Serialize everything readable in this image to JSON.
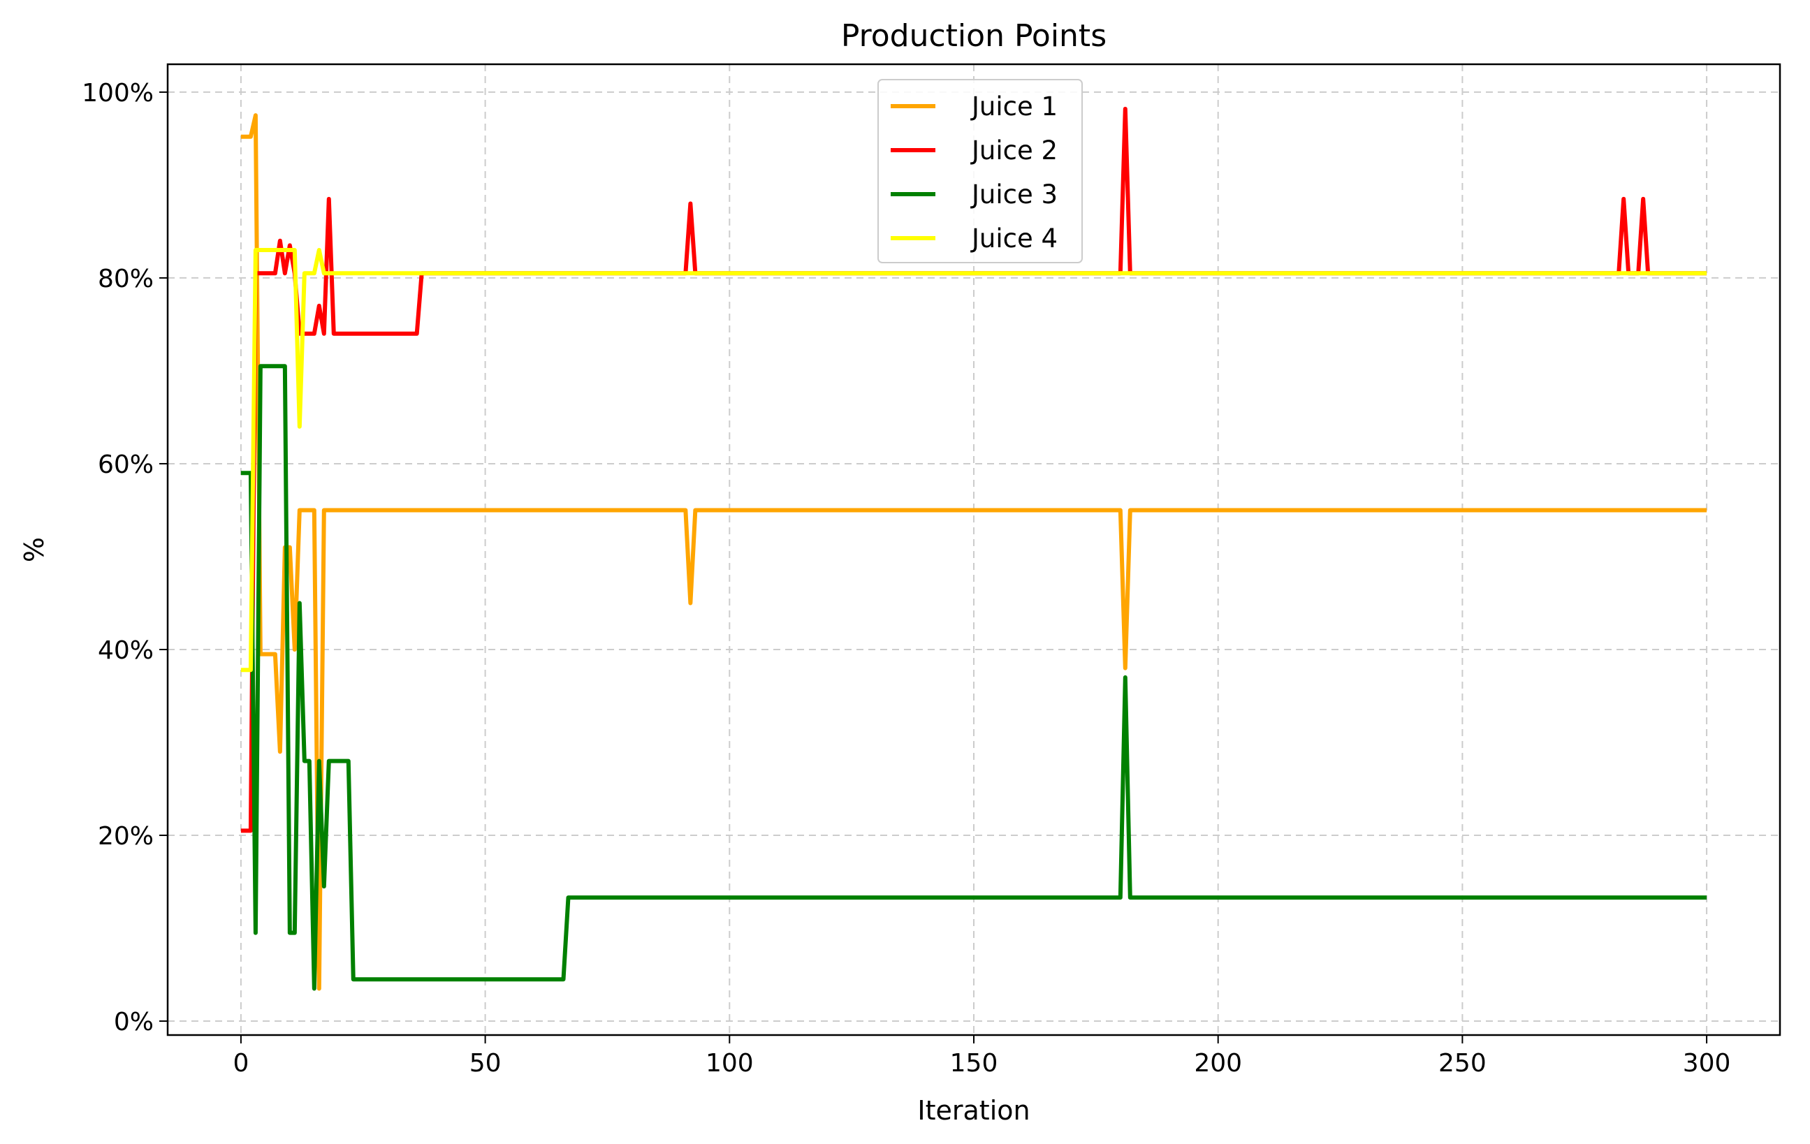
{
  "chart_data": {
    "type": "line",
    "title": "Production Points",
    "xlabel": "Iteration",
    "ylabel": "%",
    "xlim": [
      -15,
      315
    ],
    "ylim": [
      -1.5,
      103
    ],
    "xticks": [
      0,
      50,
      100,
      150,
      200,
      250,
      300
    ],
    "yticks": [
      0,
      20,
      40,
      60,
      80,
      100
    ],
    "ytick_labels": [
      "0%",
      "20%",
      "40%",
      "60%",
      "80%",
      "100%"
    ],
    "grid": true,
    "legend_position": "upper center",
    "series": [
      {
        "name": "Juice 1",
        "color": "#FFA500",
        "points": [
          [
            0,
            95.2
          ],
          [
            2,
            95.2
          ],
          [
            3,
            97.5
          ],
          [
            4,
            39.5
          ],
          [
            7,
            39.5
          ],
          [
            8,
            29
          ],
          [
            9,
            51
          ],
          [
            10,
            51
          ],
          [
            11,
            40
          ],
          [
            12,
            55
          ],
          [
            15,
            55
          ],
          [
            16,
            3.5
          ],
          [
            17,
            55
          ],
          [
            91,
            55
          ],
          [
            92,
            45
          ],
          [
            93,
            55
          ],
          [
            180,
            55
          ],
          [
            181,
            38
          ],
          [
            182,
            55
          ],
          [
            300,
            55
          ]
        ]
      },
      {
        "name": "Juice 2",
        "color": "#FF0000",
        "points": [
          [
            0,
            20.5
          ],
          [
            2,
            20.5
          ],
          [
            3,
            80.5
          ],
          [
            7,
            80.5
          ],
          [
            8,
            84
          ],
          [
            9,
            80.5
          ],
          [
            10,
            83.5
          ],
          [
            11,
            80.5
          ],
          [
            12,
            74
          ],
          [
            15,
            74
          ],
          [
            16,
            77
          ],
          [
            17,
            74
          ],
          [
            18,
            88.5
          ],
          [
            19,
            74
          ],
          [
            36,
            74
          ],
          [
            37,
            80.5
          ],
          [
            91,
            80.5
          ],
          [
            92,
            88
          ],
          [
            93,
            80.5
          ],
          [
            180,
            80.5
          ],
          [
            181,
            98.2
          ],
          [
            182,
            80.5
          ],
          [
            282,
            80.5
          ],
          [
            283,
            88.5
          ],
          [
            284,
            80.5
          ],
          [
            286,
            80.5
          ],
          [
            287,
            88.5
          ],
          [
            288,
            80.5
          ],
          [
            300,
            80.5
          ]
        ]
      },
      {
        "name": "Juice 3",
        "color": "#008000",
        "points": [
          [
            0,
            59
          ],
          [
            2,
            59
          ],
          [
            3,
            9.5
          ],
          [
            4,
            70.5
          ],
          [
            9,
            70.5
          ],
          [
            10,
            9.5
          ],
          [
            11,
            9.5
          ],
          [
            12,
            45
          ],
          [
            13,
            28
          ],
          [
            14,
            28
          ],
          [
            15,
            3.5
          ],
          [
            16,
            28
          ],
          [
            17,
            14.5
          ],
          [
            18,
            28
          ],
          [
            22,
            28
          ],
          [
            23,
            4.5
          ],
          [
            66,
            4.5
          ],
          [
            67,
            13.3
          ],
          [
            180,
            13.3
          ],
          [
            181,
            37
          ],
          [
            182,
            13.3
          ],
          [
            300,
            13.3
          ]
        ]
      },
      {
        "name": "Juice 4",
        "color": "#FFFF00",
        "points": [
          [
            0,
            37.8
          ],
          [
            2,
            37.8
          ],
          [
            3,
            83
          ],
          [
            11,
            83
          ],
          [
            12,
            64
          ],
          [
            13,
            80.5
          ],
          [
            15,
            80.5
          ],
          [
            16,
            83
          ],
          [
            17,
            80.5
          ],
          [
            300,
            80.5
          ]
        ]
      }
    ]
  }
}
